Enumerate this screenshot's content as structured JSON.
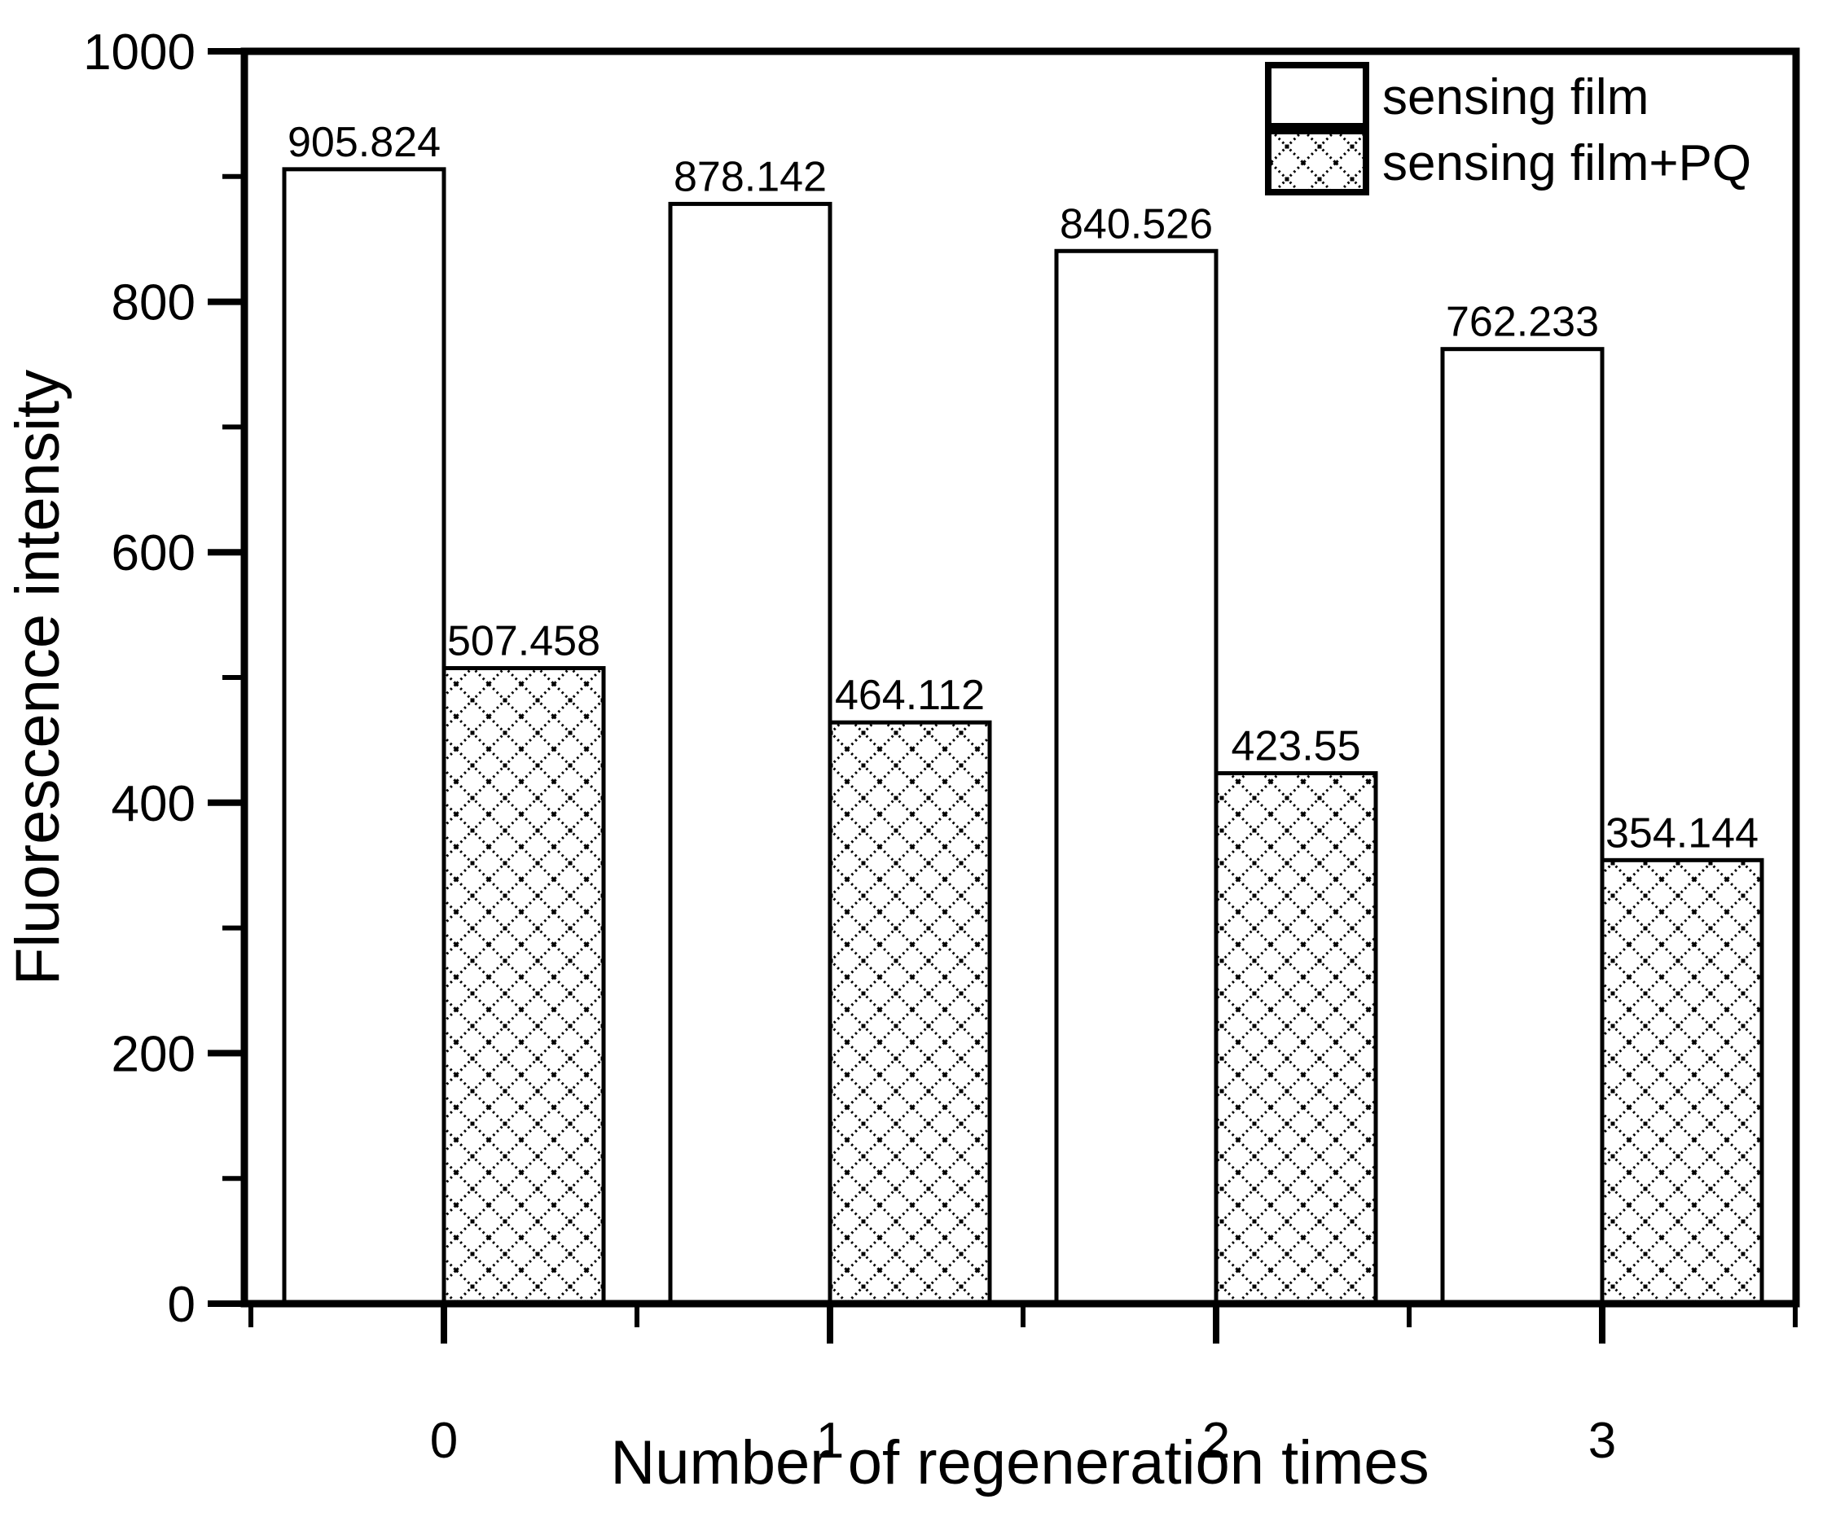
{
  "chart_data": {
    "type": "bar",
    "title": "",
    "xlabel": "Number of regeneration times",
    "ylabel": "Fluorescence intensity",
    "categories": [
      "0",
      "1",
      "2",
      "3"
    ],
    "series": [
      {
        "name": "sensing film",
        "fill": "solid-white",
        "values": [
          905.824,
          878.142,
          840.526,
          762.233
        ]
      },
      {
        "name": "sensing film+PQ",
        "fill": "crosshatch",
        "values": [
          507.458,
          464.112,
          423.55,
          354.144
        ]
      }
    ],
    "value_labels_shown": true,
    "ylim": [
      0,
      1000
    ],
    "y_major_step": 200,
    "y_minor_step": 100,
    "grid": "off",
    "legend_position": "top-right",
    "frame": "box",
    "bar_color": "#ffffff",
    "outline_color": "#000000",
    "background_color": "#ffffff",
    "text_color": "#000000"
  }
}
